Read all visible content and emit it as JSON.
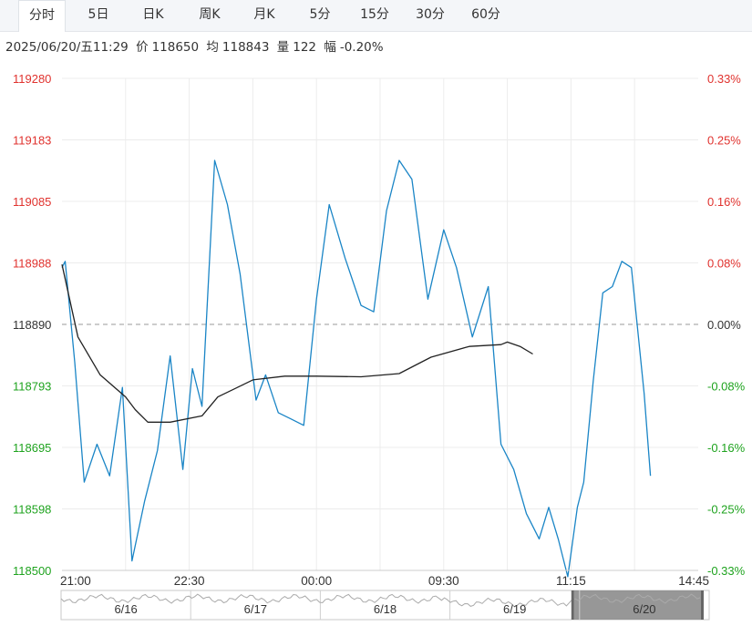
{
  "tabs": [
    {
      "label": "分时",
      "active": true
    },
    {
      "label": "5日",
      "active": false
    },
    {
      "label": "日K",
      "active": false
    },
    {
      "label": "周K",
      "active": false
    },
    {
      "label": "月K",
      "active": false
    },
    {
      "label": "5分",
      "active": false
    },
    {
      "label": "15分",
      "active": false
    },
    {
      "label": "30分",
      "active": false
    },
    {
      "label": "60分",
      "active": false
    }
  ],
  "info": {
    "datetime": "2025/06/20/五11:29",
    "price_label": "价",
    "price": "118650",
    "avg_label": "均",
    "avg": "118843",
    "vol_label": "量",
    "vol": "122",
    "chg_label": "幅",
    "chg": "-0.20%"
  },
  "colors": {
    "up": "#e0322e",
    "down": "#1fa31f",
    "flat": "#333333",
    "price_line": "#1a85c6",
    "avg_line": "#222222"
  },
  "chart_data": {
    "type": "line",
    "prev_close": 118890,
    "ylim": [
      118500,
      119280
    ],
    "left_ticks": [
      "119280",
      "119183",
      "119085",
      "118988",
      "118890",
      "118793",
      "118695",
      "118598",
      "118500"
    ],
    "right_ticks": [
      "0.33%",
      "0.25%",
      "0.16%",
      "0.08%",
      "0.00%",
      "-0.08%",
      "-0.16%",
      "-0.25%",
      "-0.33%"
    ],
    "x_ticks": [
      "21:00",
      "22:30",
      "00:00",
      "09:30",
      "11:15",
      "14:45"
    ],
    "x_sessions": 10,
    "series": [
      {
        "key": "price",
        "x": [
          0,
          0.05,
          0.2,
          0.35,
          0.55,
          0.75,
          0.95,
          1.1,
          1.3,
          1.5,
          1.7,
          1.9,
          2.05,
          2.2,
          2.4,
          2.6,
          2.8,
          3.05,
          3.2,
          3.4,
          3.6,
          3.8,
          4.0,
          4.2,
          4.45,
          4.7,
          4.9,
          5.1,
          5.3,
          5.5,
          5.75,
          6.0,
          6.2,
          6.45,
          6.7,
          6.9,
          7.1,
          7.3,
          7.5,
          7.65,
          7.8,
          7.95,
          8.1,
          8.2,
          8.35,
          8.5,
          8.65,
          8.8,
          8.95,
          9.05,
          9.15,
          9.25
        ],
        "values": [
          118980,
          118990,
          118830,
          118640,
          118700,
          118650,
          118790,
          118515,
          118610,
          118690,
          118840,
          118660,
          118820,
          118760,
          119150,
          119080,
          118970,
          118770,
          118810,
          118750,
          118740,
          118730,
          118930,
          119080,
          118995,
          118920,
          118910,
          119070,
          119150,
          119120,
          118930,
          119040,
          118980,
          118870,
          118950,
          118700,
          118660,
          118590,
          118550,
          118600,
          118550,
          118490,
          118600,
          118640,
          118800,
          118940,
          118950,
          118990,
          118980,
          118880,
          118780,
          118650
        ]
      },
      {
        "key": "avg",
        "x": [
          0,
          0.25,
          0.6,
          1.0,
          1.15,
          1.35,
          1.7,
          2.2,
          2.45,
          3.0,
          3.5,
          4.0,
          4.7,
          5.3,
          5.8,
          6.4,
          6.9,
          7.0,
          7.2,
          7.4
        ],
        "values": [
          118985,
          118870,
          118810,
          118775,
          118755,
          118735,
          118735,
          118745,
          118775,
          118802,
          118808,
          118808,
          118807,
          118812,
          118838,
          118855,
          118858,
          118862,
          118855,
          118843
        ]
      }
    ],
    "grid": true,
    "navigator": {
      "labels": [
        "6/16",
        "6/17",
        "6/18",
        "6/19",
        "6/20"
      ]
    }
  }
}
